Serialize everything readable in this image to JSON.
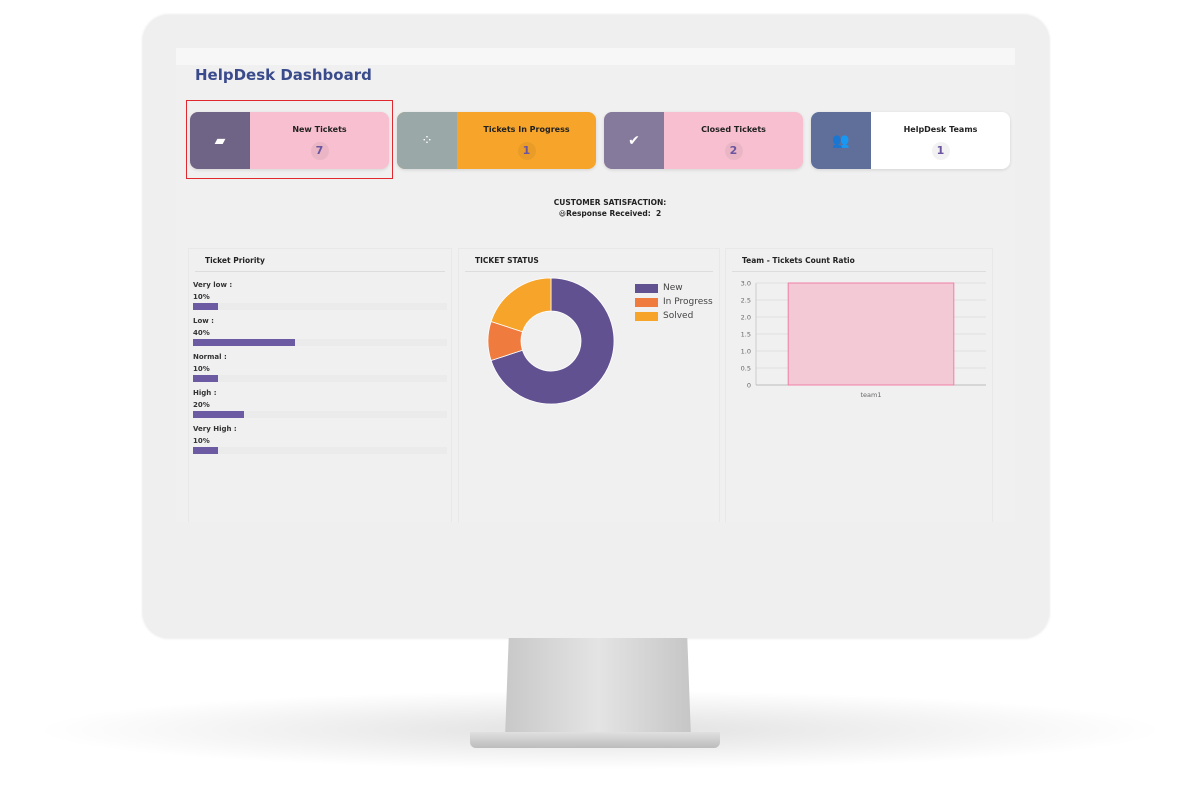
{
  "header": {
    "title": "HelpDesk Dashboard"
  },
  "cards": [
    {
      "label": "New Tickets",
      "value": "7",
      "icon": "inbox-icon",
      "icon_bg": "#6f6485",
      "bg": "#f7bfcf"
    },
    {
      "label": "Tickets In Progress",
      "value": "1",
      "icon": "spinner-icon",
      "icon_bg": "#9aa9a8",
      "bg": "#f6a52a"
    },
    {
      "label": "Closed Tickets",
      "value": "2",
      "icon": "check-icon",
      "icon_bg": "#857a9b",
      "bg": "#f7bfcf"
    },
    {
      "label": "HelpDesk Teams",
      "value": "1",
      "icon": "users-icon",
      "icon_bg": "#5f6f9a",
      "bg": "#ffffff"
    }
  ],
  "satisfaction": {
    "title": "CUSTOMER SATISFACTION:",
    "emoji": "😃",
    "label": "Response Received:",
    "value": "2"
  },
  "priority": {
    "title": "Ticket Priority",
    "items": [
      {
        "label": "Very low :",
        "percent": "10%",
        "value": 10
      },
      {
        "label": "Low :",
        "percent": "40%",
        "value": 40
      },
      {
        "label": "Normal :",
        "percent": "10%",
        "value": 10
      },
      {
        "label": "High :",
        "percent": "20%",
        "value": 20
      },
      {
        "label": "Very High :",
        "percent": "10%",
        "value": 10
      }
    ]
  },
  "chart_data": [
    {
      "type": "pie",
      "title": "TICKET STATUS",
      "donut": true,
      "legend": "right",
      "categories": [
        "New",
        "In Progress",
        "Solved"
      ],
      "values": [
        7,
        1,
        2
      ],
      "colors": [
        "#625191",
        "#f07b3f",
        "#f6a52a"
      ]
    },
    {
      "type": "bar",
      "title": "Team - Tickets Count Ratio",
      "categories": [
        "team1"
      ],
      "values": [
        3
      ],
      "ylim": [
        0,
        3
      ],
      "yticks": [
        "0",
        "0.5",
        "1.0",
        "1.5",
        "2.0",
        "2.5",
        "3.0"
      ],
      "grid": true,
      "color": "#f3c9d6",
      "border": "#ef7fa5"
    }
  ]
}
